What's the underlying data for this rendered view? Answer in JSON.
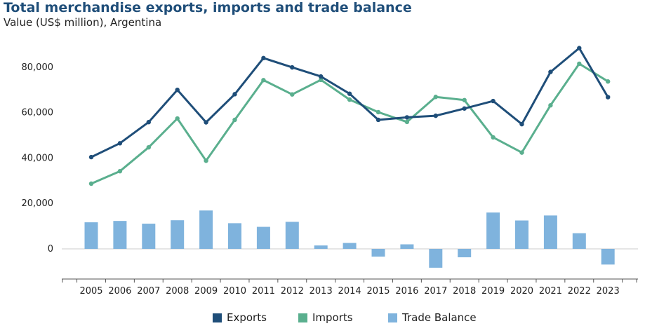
{
  "chart_data": {
    "type": "line",
    "title": "Total merchandise exports, imports and trade balance",
    "subtitle": "Value (US$ million), Argentina",
    "x": [
      "2005",
      "2006",
      "2007",
      "2008",
      "2009",
      "2010",
      "2011",
      "2012",
      "2013",
      "2014",
      "2015",
      "2016",
      "2017",
      "2018",
      "2019",
      "2020",
      "2021",
      "2022",
      "2023"
    ],
    "ylim": [
      -12000,
      92000
    ],
    "yticks": [
      0,
      20000,
      40000,
      60000,
      80000
    ],
    "ytick_labels": [
      "0",
      "20,000",
      "40,000",
      "60,000",
      "80,000"
    ],
    "grid": false,
    "legend_position": "bottom",
    "series": [
      {
        "name": "Exports",
        "kind": "line",
        "color": "#1f4e79",
        "values": [
          40400,
          46500,
          55800,
          70000,
          55700,
          68100,
          84000,
          79900,
          75900,
          68300,
          56800,
          57900,
          58600,
          61800,
          65100,
          54900,
          77900,
          88400,
          66800
        ]
      },
      {
        "name": "Imports",
        "kind": "line",
        "color": "#5aaf8e",
        "values": [
          28700,
          34200,
          44700,
          57400,
          38800,
          56800,
          74300,
          68000,
          74400,
          65700,
          60200,
          55900,
          66900,
          65500,
          49100,
          42400,
          63200,
          81500,
          73700
        ]
      },
      {
        "name": "Trade Balance",
        "kind": "bar",
        "color": "#7fb3dd",
        "values": [
          11700,
          12300,
          11100,
          12600,
          16900,
          11300,
          9700,
          11900,
          1500,
          2600,
          -3400,
          2000,
          -8300,
          -3700,
          16000,
          12500,
          14700,
          6900,
          -6900
        ]
      }
    ]
  }
}
